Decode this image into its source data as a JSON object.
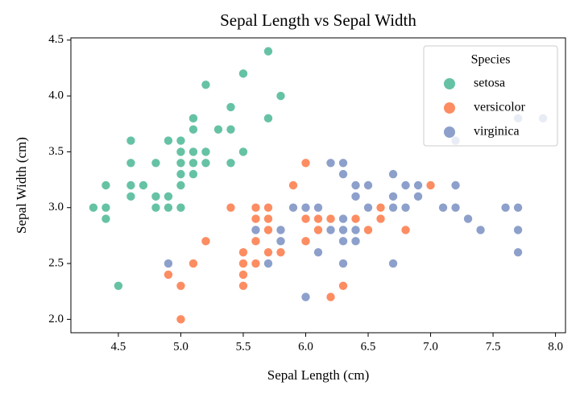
{
  "chart_data": {
    "type": "scatter",
    "title": "Sepal Length vs Sepal Width",
    "x_label": "Sepal Length (cm)",
    "y_label": "Sepal Width (cm)",
    "legend_title": "Species",
    "legend_position": "upper right",
    "xlim": [
      4.12,
      8.08
    ],
    "ylim": [
      1.88,
      4.52
    ],
    "xticks": [
      4.5,
      {
        "value": 5.0,
        "label": "5.0"
      },
      5.5,
      {
        "value": 6.0,
        "label": "6.0"
      },
      6.5,
      {
        "value": 7.0,
        "label": "7.0"
      },
      7.5,
      {
        "value": 8.0,
        "label": "8.0"
      }
    ],
    "yticks": [
      {
        "value": 2.0,
        "label": "2.0"
      },
      2.5,
      {
        "value": 3.0,
        "label": "3.0"
      },
      3.5,
      {
        "value": 4.0,
        "label": "4.0"
      },
      4.5
    ],
    "series": [
      {
        "name": "setosa",
        "color": "#66c2a5",
        "x": [
          5.1,
          4.9,
          4.7,
          4.6,
          5.0,
          5.4,
          4.6,
          5.0,
          4.4,
          4.9,
          5.4,
          4.8,
          4.8,
          4.3,
          5.8,
          5.7,
          5.4,
          5.1,
          5.7,
          5.1,
          5.4,
          5.1,
          4.6,
          5.1,
          4.8,
          5.0,
          5.0,
          5.2,
          5.2,
          4.7,
          4.8,
          5.4,
          5.2,
          5.5,
          4.9,
          5.0,
          5.5,
          4.9,
          4.4,
          5.1,
          5.0,
          4.5,
          4.4,
          5.0,
          5.1,
          4.8,
          5.1,
          4.6,
          5.3,
          5.0
        ],
        "values": [
          3.5,
          3.0,
          3.2,
          3.1,
          3.6,
          3.9,
          3.4,
          3.4,
          2.9,
          3.1,
          3.7,
          3.4,
          3.0,
          3.0,
          4.0,
          4.4,
          3.9,
          3.5,
          3.8,
          3.8,
          3.4,
          3.7,
          3.6,
          3.3,
          3.4,
          3.0,
          3.4,
          3.5,
          3.4,
          3.2,
          3.1,
          3.4,
          4.1,
          4.2,
          3.1,
          3.2,
          3.5,
          3.6,
          3.0,
          3.4,
          3.5,
          2.3,
          3.2,
          3.5,
          3.8,
          3.0,
          3.8,
          3.2,
          3.7,
          3.3
        ]
      },
      {
        "name": "versicolor",
        "color": "#fc8d62",
        "x": [
          7.0,
          6.4,
          6.9,
          5.5,
          6.5,
          5.7,
          6.3,
          4.9,
          6.6,
          5.2,
          5.0,
          5.9,
          6.0,
          6.1,
          5.6,
          6.7,
          5.6,
          5.8,
          6.2,
          5.6,
          5.9,
          6.1,
          6.3,
          6.1,
          6.4,
          6.6,
          6.8,
          6.7,
          6.0,
          5.7,
          5.5,
          5.5,
          5.8,
          6.0,
          5.4,
          6.0,
          6.7,
          6.3,
          5.6,
          5.5,
          5.5,
          6.1,
          5.8,
          5.0,
          5.6,
          5.7,
          5.7,
          6.2,
          5.1,
          5.7
        ],
        "values": [
          3.2,
          3.2,
          3.1,
          2.3,
          2.8,
          2.8,
          3.3,
          2.4,
          2.9,
          2.7,
          2.0,
          3.0,
          2.2,
          2.9,
          2.9,
          3.1,
          3.0,
          2.7,
          2.2,
          2.5,
          3.2,
          2.8,
          2.5,
          2.8,
          2.9,
          3.0,
          2.8,
          3.0,
          2.9,
          2.6,
          2.4,
          2.4,
          2.7,
          2.7,
          3.0,
          3.4,
          3.1,
          2.3,
          3.0,
          2.5,
          2.6,
          3.0,
          2.6,
          2.3,
          2.7,
          3.0,
          2.9,
          2.9,
          2.5,
          2.8
        ]
      },
      {
        "name": "virginica",
        "color": "#8da0cb",
        "x": [
          6.3,
          5.8,
          7.1,
          6.3,
          6.5,
          7.6,
          4.9,
          7.3,
          6.7,
          7.2,
          6.5,
          6.4,
          6.8,
          5.7,
          5.8,
          6.4,
          6.5,
          7.7,
          7.7,
          6.0,
          6.9,
          5.6,
          7.7,
          6.3,
          6.7,
          7.2,
          6.2,
          6.1,
          6.4,
          7.2,
          7.4,
          7.9,
          6.4,
          6.3,
          6.1,
          7.7,
          6.3,
          6.4,
          6.0,
          6.9,
          6.7,
          6.9,
          5.8,
          6.8,
          6.7,
          6.7,
          6.3,
          6.5,
          6.2,
          5.9
        ],
        "values": [
          3.3,
          2.7,
          3.0,
          2.9,
          3.0,
          3.0,
          2.5,
          2.9,
          2.5,
          3.6,
          3.2,
          2.7,
          3.0,
          2.5,
          2.8,
          3.2,
          3.0,
          3.8,
          2.6,
          2.2,
          3.2,
          2.8,
          2.8,
          2.7,
          3.3,
          3.2,
          2.8,
          3.0,
          2.8,
          3.0,
          2.8,
          3.8,
          2.8,
          2.8,
          2.6,
          3.0,
          3.4,
          3.1,
          3.0,
          3.1,
          3.1,
          3.1,
          2.7,
          3.2,
          3.3,
          3.0,
          2.5,
          3.0,
          3.4,
          3.0
        ]
      }
    ]
  }
}
